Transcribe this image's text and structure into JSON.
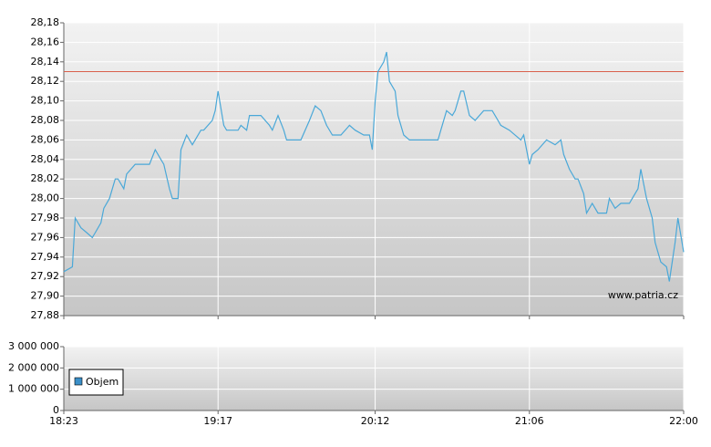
{
  "chart_data": [
    {
      "type": "line",
      "x": [
        "18:23",
        "18:26",
        "18:27",
        "18:29",
        "18:31",
        "18:33",
        "18:34",
        "18:36",
        "18:37",
        "18:39",
        "18:41",
        "18:42",
        "18:44",
        "18:45",
        "18:48",
        "18:53",
        "18:55",
        "18:57",
        "18:58",
        "19:00",
        "19:01",
        "19:03",
        "19:04",
        "19:06",
        "19:08",
        "19:09",
        "19:11",
        "19:12",
        "19:15",
        "19:16",
        "19:17",
        "19:19",
        "19:20",
        "19:24",
        "19:25",
        "19:27",
        "19:28",
        "19:32",
        "19:35",
        "19:36",
        "19:38",
        "19:40",
        "19:41",
        "19:43",
        "19:46",
        "19:49",
        "19:51",
        "19:53",
        "19:55",
        "19:57",
        "20:00",
        "20:03",
        "20:05",
        "20:08",
        "20:10",
        "20:11",
        "20:12",
        "20:13",
        "20:15",
        "20:16",
        "20:17",
        "20:19",
        "20:20",
        "20:22",
        "20:24",
        "20:27",
        "20:31",
        "20:34",
        "20:35",
        "20:37",
        "20:39",
        "20:40",
        "20:42",
        "20:43",
        "20:45",
        "20:47",
        "20:50",
        "20:53",
        "20:55",
        "20:56",
        "20:59",
        "21:03",
        "21:04",
        "21:06",
        "21:07",
        "21:09",
        "21:12",
        "21:15",
        "21:17",
        "21:18",
        "21:20",
        "21:22",
        "21:23",
        "21:25",
        "21:26",
        "21:28",
        "21:30",
        "21:31",
        "21:33",
        "21:34",
        "21:36",
        "21:38",
        "21:41",
        "21:42",
        "21:44",
        "21:45",
        "21:46",
        "21:47",
        "21:49",
        "21:50",
        "21:52",
        "21:54",
        "21:55",
        "21:57",
        "21:58",
        "22:00"
      ],
      "series": [
        {
          "color": "#4aa8d8",
          "values": [
            27.925,
            27.93,
            27.98,
            27.97,
            27.965,
            27.96,
            27.965,
            27.975,
            27.99,
            28.0,
            28.02,
            28.02,
            28.01,
            28.025,
            28.035,
            28.035,
            28.05,
            28.04,
            28.035,
            28.01,
            28.0,
            28.0,
            28.05,
            28.065,
            28.055,
            28.06,
            28.07,
            28.07,
            28.08,
            28.09,
            28.11,
            28.075,
            28.07,
            28.07,
            28.075,
            28.07,
            28.085,
            28.085,
            28.075,
            28.07,
            28.085,
            28.07,
            28.06,
            28.06,
            28.06,
            28.08,
            28.095,
            28.09,
            28.075,
            28.065,
            28.065,
            28.075,
            28.07,
            28.065,
            28.065,
            28.05,
            28.1,
            28.13,
            28.14,
            28.15,
            28.12,
            28.11,
            28.085,
            28.065,
            28.06,
            28.06,
            28.06,
            28.06,
            28.07,
            28.09,
            28.085,
            28.09,
            28.11,
            28.11,
            28.085,
            28.08,
            28.09,
            28.09,
            28.08,
            28.075,
            28.07,
            28.06,
            28.065,
            28.035,
            28.045,
            28.05,
            28.06,
            28.055,
            28.06,
            28.045,
            28.03,
            28.02,
            28.02,
            28.005,
            27.985,
            27.995,
            27.985,
            27.985,
            27.985,
            28.0,
            27.99,
            27.995,
            27.995,
            28.0,
            28.01,
            28.03,
            28.015,
            28.0,
            27.98,
            27.955,
            27.935,
            27.93,
            27.915,
            27.955,
            27.98,
            27.945
          ]
        }
      ],
      "xlim": [
        "18:23",
        "22:00"
      ],
      "ylim": [
        27.88,
        28.18
      ],
      "yticks": [
        {
          "value": 27.88,
          "label": "27,88"
        },
        {
          "value": 27.9,
          "label": "27,90"
        },
        {
          "value": 27.92,
          "label": "27,92"
        },
        {
          "value": 27.94,
          "label": "27,94"
        },
        {
          "value": 27.96,
          "label": "27,96"
        },
        {
          "value": 27.98,
          "label": "27,98"
        },
        {
          "value": 28.0,
          "label": "28,00"
        },
        {
          "value": 28.02,
          "label": "28,02"
        },
        {
          "value": 28.04,
          "label": "28,04"
        },
        {
          "value": 28.06,
          "label": "28,06"
        },
        {
          "value": 28.08,
          "label": "28,08"
        },
        {
          "value": 28.1,
          "label": "28,10"
        },
        {
          "value": 28.12,
          "label": "28,12"
        },
        {
          "value": 28.14,
          "label": "28,14"
        },
        {
          "value": 28.16,
          "label": "28,16"
        },
        {
          "value": 28.18,
          "label": "28,18"
        }
      ],
      "reference_line": {
        "value": 28.13,
        "color": "#d9604c"
      },
      "annotation": "www.patria.cz",
      "grid": true
    },
    {
      "type": "bar",
      "series": [
        {
          "name": "Objem",
          "color": "#3a8fc8"
        }
      ],
      "xlim": [
        "18:23",
        "22:00"
      ],
      "xticks": [
        "18:23",
        "19:17",
        "20:12",
        "21:06",
        "22:00"
      ],
      "ylim": [
        0,
        3000000
      ],
      "yticks": [
        {
          "value": 0,
          "label": "0"
        },
        {
          "value": 1000000,
          "label": "1 000 000"
        },
        {
          "value": 2000000,
          "label": "2 000 000"
        },
        {
          "value": 3000000,
          "label": "3 000 000"
        }
      ],
      "grid": true
    }
  ]
}
